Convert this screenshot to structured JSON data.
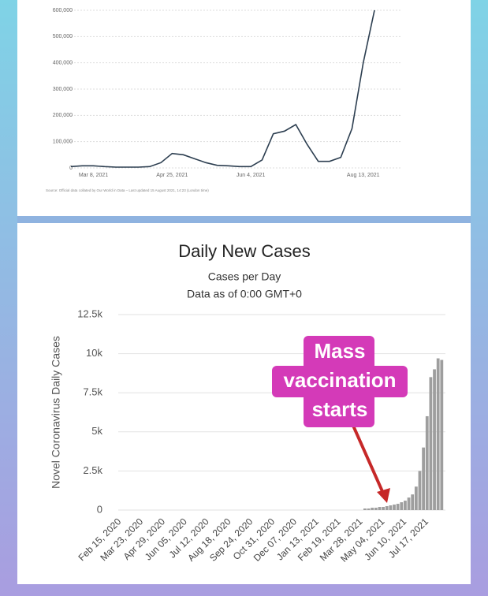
{
  "chart_data": [
    {
      "type": "line",
      "color": "#2c3e50",
      "categories": [
        null,
        null,
        "Mar 8, 2021",
        null,
        null,
        null,
        null,
        null,
        null,
        "Apr 25, 2021",
        null,
        null,
        null,
        null,
        null,
        null,
        "Jun 4, 2021",
        null,
        null,
        null,
        null,
        null,
        null,
        null,
        null,
        null,
        "Aug 13, 2021",
        null
      ],
      "values": [
        5000,
        8000,
        8000,
        5000,
        3000,
        3000,
        3000,
        5000,
        20000,
        55000,
        50000,
        35000,
        20000,
        10000,
        8000,
        5000,
        5000,
        30000,
        130000,
        140000,
        165000,
        90000,
        25000,
        25000,
        40000,
        150000,
        400000,
        600000
      ],
      "ylim": [
        0,
        600000
      ],
      "yticks": [
        0,
        {
          "value": 100000,
          "label": "100,000"
        },
        {
          "value": 200000,
          "label": "200,000"
        },
        {
          "value": 300000,
          "label": "300,000"
        },
        {
          "value": 400000,
          "label": "400,000"
        },
        {
          "value": 500000,
          "label": "500,000"
        },
        {
          "value": 600000,
          "label": "600,000"
        }
      ],
      "grid": true,
      "source": "Source: Official data collated by Our World in Data – Last updated 15 August 2021, 14:23 (London time)"
    },
    {
      "type": "bar",
      "color": "#9e9e9e",
      "title": "Daily New Cases",
      "subtitle": "Cases per Day",
      "note": "Data as of 0:00 GMT+0",
      "y_label": "Novel Coronavirus Daily Cases",
      "categories": [
        "Feb 15, 2020",
        null,
        null,
        null,
        null,
        null,
        "Mar 23, 2020",
        null,
        null,
        null,
        null,
        null,
        "Apr 29, 2020",
        null,
        null,
        null,
        null,
        null,
        "Jun 05, 2020",
        null,
        null,
        null,
        null,
        null,
        "Jul 12, 2020",
        null,
        null,
        null,
        null,
        null,
        "Aug 18, 2020",
        null,
        null,
        null,
        null,
        null,
        "Sep 24, 2020",
        null,
        null,
        null,
        null,
        null,
        "Oct 31, 2020",
        null,
        null,
        null,
        null,
        null,
        "Dec 07, 2020",
        null,
        null,
        null,
        null,
        null,
        "Jan 13, 2021",
        null,
        null,
        null,
        null,
        null,
        "Feb 19, 2021",
        null,
        null,
        null,
        null,
        null,
        "Mar 28, 2021",
        null,
        null,
        null,
        null,
        null,
        "May 04, 2021",
        null,
        null,
        null,
        null,
        null,
        "Jun 10, 2021",
        null,
        null,
        null,
        null,
        null,
        "Jul 17, 2021",
        null,
        null,
        null,
        null
      ],
      "values": [
        0,
        0,
        0,
        0,
        0,
        0,
        0,
        0,
        0,
        0,
        0,
        0,
        0,
        0,
        0,
        0,
        0,
        0,
        0,
        0,
        0,
        0,
        0,
        0,
        0,
        0,
        0,
        0,
        0,
        0,
        0,
        0,
        0,
        0,
        0,
        0,
        0,
        0,
        0,
        0,
        0,
        0,
        0,
        0,
        0,
        0,
        0,
        0,
        0,
        0,
        0,
        0,
        0,
        0,
        0,
        0,
        0,
        0,
        0,
        0,
        0,
        0,
        0,
        0,
        0,
        0,
        0,
        100,
        100,
        150,
        150,
        200,
        200,
        250,
        300,
        350,
        400,
        500,
        600,
        800,
        1000,
        1500,
        2500,
        4000,
        6000,
        8500,
        9000,
        9700,
        9600
      ],
      "ylim": [
        0,
        12500
      ],
      "yticks": [
        0,
        {
          "value": 2500,
          "label": "2.5k"
        },
        {
          "value": 5000,
          "label": "5k"
        },
        {
          "value": 7500,
          "label": "7.5k"
        },
        {
          "value": 10000,
          "label": "10k"
        },
        {
          "value": 12500,
          "label": "12.5k"
        }
      ],
      "grid": true,
      "annotation_lines": [
        "Mass",
        "vaccination",
        "starts"
      ],
      "annotation_color": "#d43ab8",
      "arrow_color": "#c62828"
    }
  ]
}
